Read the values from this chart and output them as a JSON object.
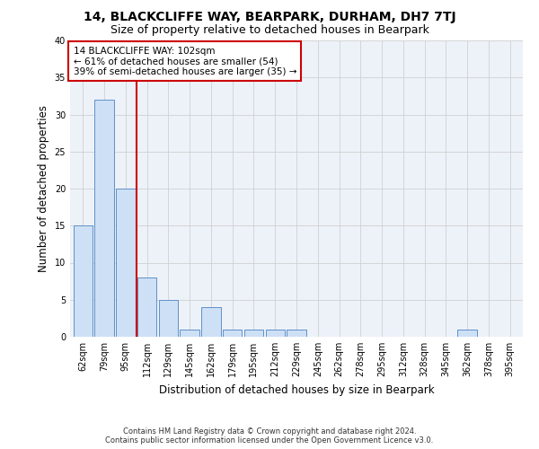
{
  "title": "14, BLACKCLIFFE WAY, BEARPARK, DURHAM, DH7 7TJ",
  "subtitle": "Size of property relative to detached houses in Bearpark",
  "xlabel": "Distribution of detached houses by size in Bearpark",
  "ylabel": "Number of detached properties",
  "footer_line1": "Contains HM Land Registry data © Crown copyright and database right 2024.",
  "footer_line2": "Contains public sector information licensed under the Open Government Licence v3.0.",
  "categories": [
    "62sqm",
    "79sqm",
    "95sqm",
    "112sqm",
    "129sqm",
    "145sqm",
    "162sqm",
    "179sqm",
    "195sqm",
    "212sqm",
    "229sqm",
    "245sqm",
    "262sqm",
    "278sqm",
    "295sqm",
    "312sqm",
    "328sqm",
    "345sqm",
    "362sqm",
    "378sqm",
    "395sqm"
  ],
  "values": [
    15,
    32,
    20,
    8,
    5,
    1,
    4,
    1,
    1,
    1,
    1,
    0,
    0,
    0,
    0,
    0,
    0,
    0,
    1,
    0,
    0
  ],
  "bar_color": "#cde0f5",
  "bar_edge_color": "#6090c8",
  "property_line_x": 2.5,
  "property_line_color": "#cc0000",
  "annotation_text": "14 BLACKCLIFFE WAY: 102sqm\n← 61% of detached houses are smaller (54)\n39% of semi-detached houses are larger (35) →",
  "annotation_box_color": "#cc0000",
  "ylim": [
    0,
    40
  ],
  "yticks": [
    0,
    5,
    10,
    15,
    20,
    25,
    30,
    35,
    40
  ],
  "grid_color": "#d0d0d0",
  "bg_color": "#edf2f9",
  "title_fontsize": 10,
  "subtitle_fontsize": 9,
  "axis_label_fontsize": 8.5,
  "tick_fontsize": 7,
  "annotation_fontsize": 7.5,
  "footer_fontsize": 6
}
